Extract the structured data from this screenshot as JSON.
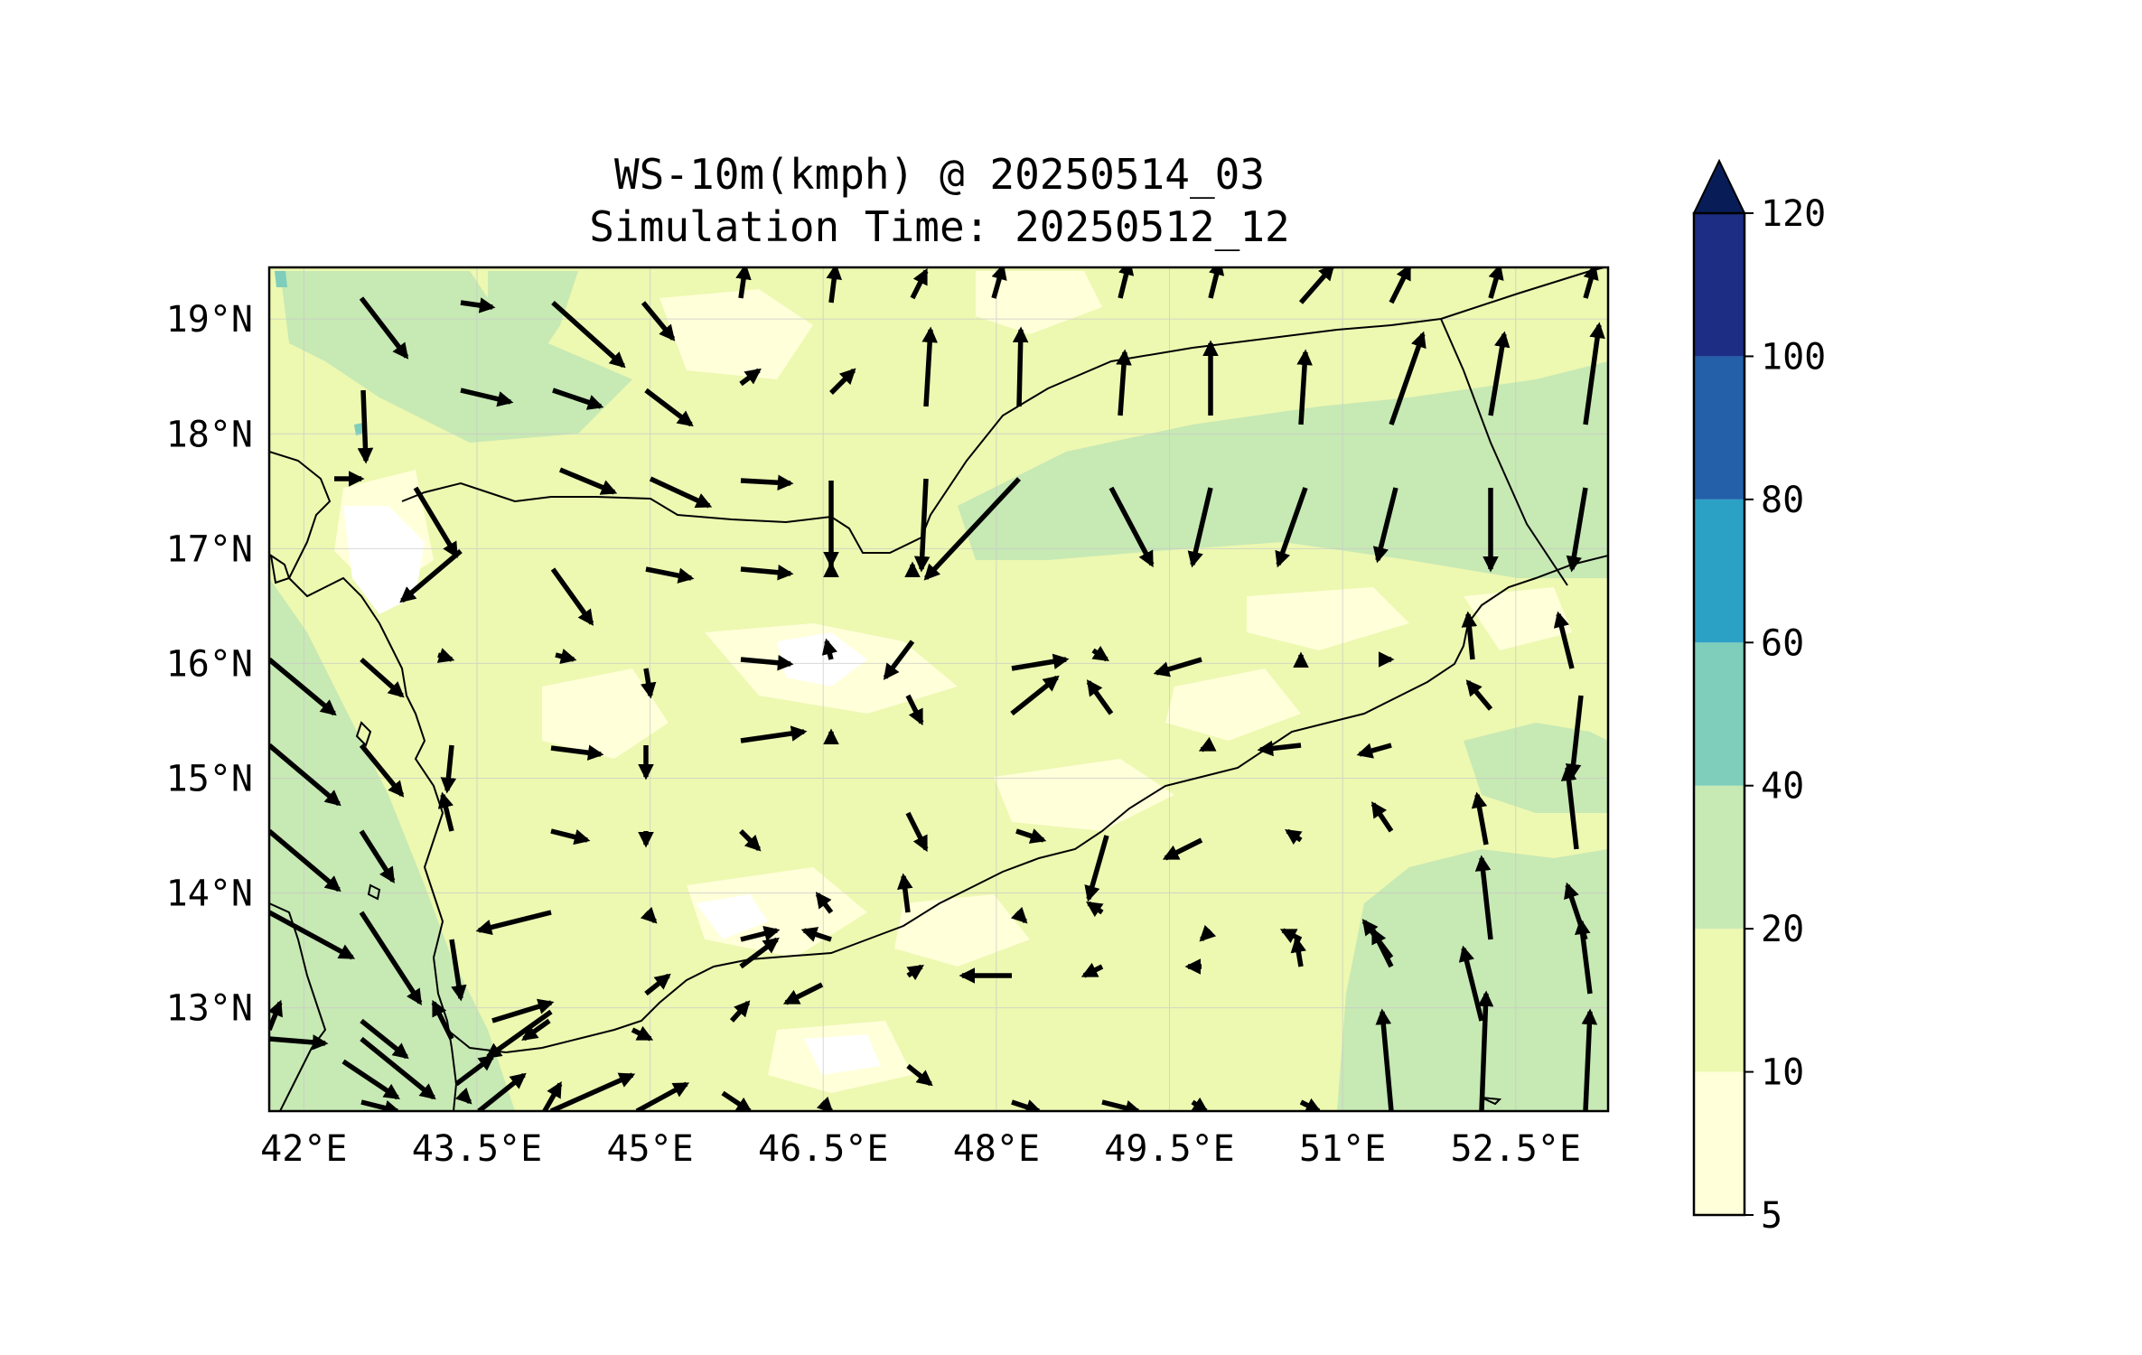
{
  "title": {
    "line1": "WS-10m(kmph) @ 20250514_03",
    "line2": "Simulation Time: 20250512_12"
  },
  "map": {
    "lon_range": [
      41.7,
      53.3
    ],
    "lat_range": [
      12.1,
      19.45
    ],
    "x_ticks": [
      {
        "value": 42,
        "label": "42°E"
      },
      {
        "value": 43.5,
        "label": "43.5°E"
      },
      {
        "value": 45,
        "label": "45°E"
      },
      {
        "value": 46.5,
        "label": "46.5°E"
      },
      {
        "value": 48,
        "label": "48°E"
      },
      {
        "value": 49.5,
        "label": "49.5°E"
      },
      {
        "value": 51,
        "label": "51°E"
      },
      {
        "value": 52.5,
        "label": "52.5°E"
      }
    ],
    "y_ticks": [
      {
        "value": 19,
        "label": "19°N"
      },
      {
        "value": 18,
        "label": "18°N"
      },
      {
        "value": 17,
        "label": "17°N"
      },
      {
        "value": 16,
        "label": "16°N"
      },
      {
        "value": 15,
        "label": "15°N"
      },
      {
        "value": 14,
        "label": "14°N"
      },
      {
        "value": 13,
        "label": "13°N"
      }
    ],
    "grid": true
  },
  "colorbar": {
    "levels": [
      5,
      10,
      20,
      40,
      60,
      80,
      100,
      120
    ],
    "labels": [
      "5",
      "10",
      "20",
      "40",
      "60",
      "80",
      "100",
      "120"
    ],
    "colors": [
      "#ffffd9",
      "#edf8b1",
      "#c7e9b4",
      "#7fcdbb",
      "#2ca1c6",
      "#2360a9",
      "#1d2d84"
    ],
    "extend_color": "#081d58"
  },
  "colors": {
    "land_base": "#edf8b1",
    "arrow": "#000000",
    "coast": "#000000"
  }
}
